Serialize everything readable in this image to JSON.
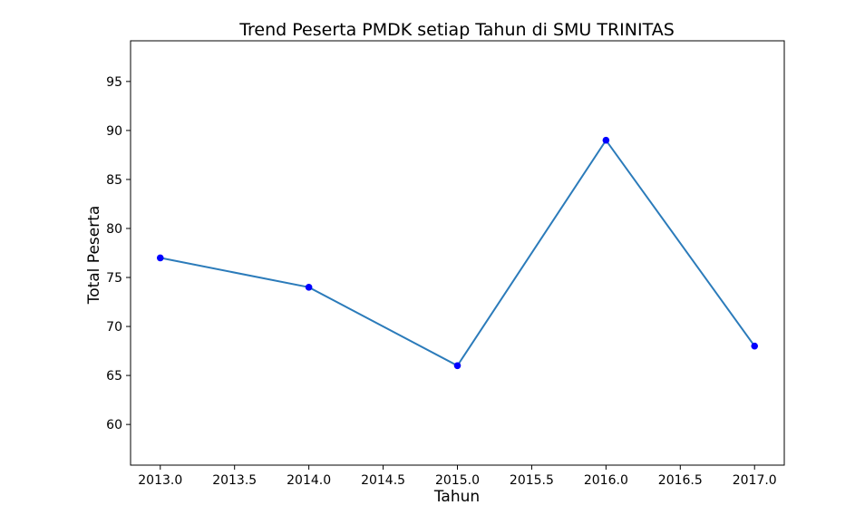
{
  "chart_data": {
    "type": "line",
    "title": "Trend Peserta PMDK setiap Tahun di SMU TRINITAS",
    "xlabel": "Tahun",
    "ylabel": "Total Peserta",
    "x": [
      2013,
      2014,
      2015,
      2016,
      2017
    ],
    "series": [
      {
        "values": [
          77,
          74,
          66,
          89,
          68
        ]
      }
    ],
    "xlim": [
      2012.8,
      2017.2
    ],
    "ylim": [
      55.85,
      99.15
    ],
    "xticks": [
      2013.0,
      2013.5,
      2014.0,
      2014.5,
      2015.0,
      2015.5,
      2016.0,
      2016.5,
      2017.0
    ],
    "xtick_labels": [
      "2013.0",
      "2013.5",
      "2014.0",
      "2014.5",
      "2015.0",
      "2015.5",
      "2016.0",
      "2016.5",
      "2017.0"
    ],
    "yticks": [
      60,
      65,
      70,
      75,
      80,
      85,
      90,
      95
    ],
    "ytick_labels": [
      "60",
      "65",
      "70",
      "75",
      "80",
      "85",
      "90",
      "95"
    ],
    "grid": false,
    "line_color": "#2b7bba",
    "marker_color": "#0000ff",
    "axis_color": "#000000"
  }
}
